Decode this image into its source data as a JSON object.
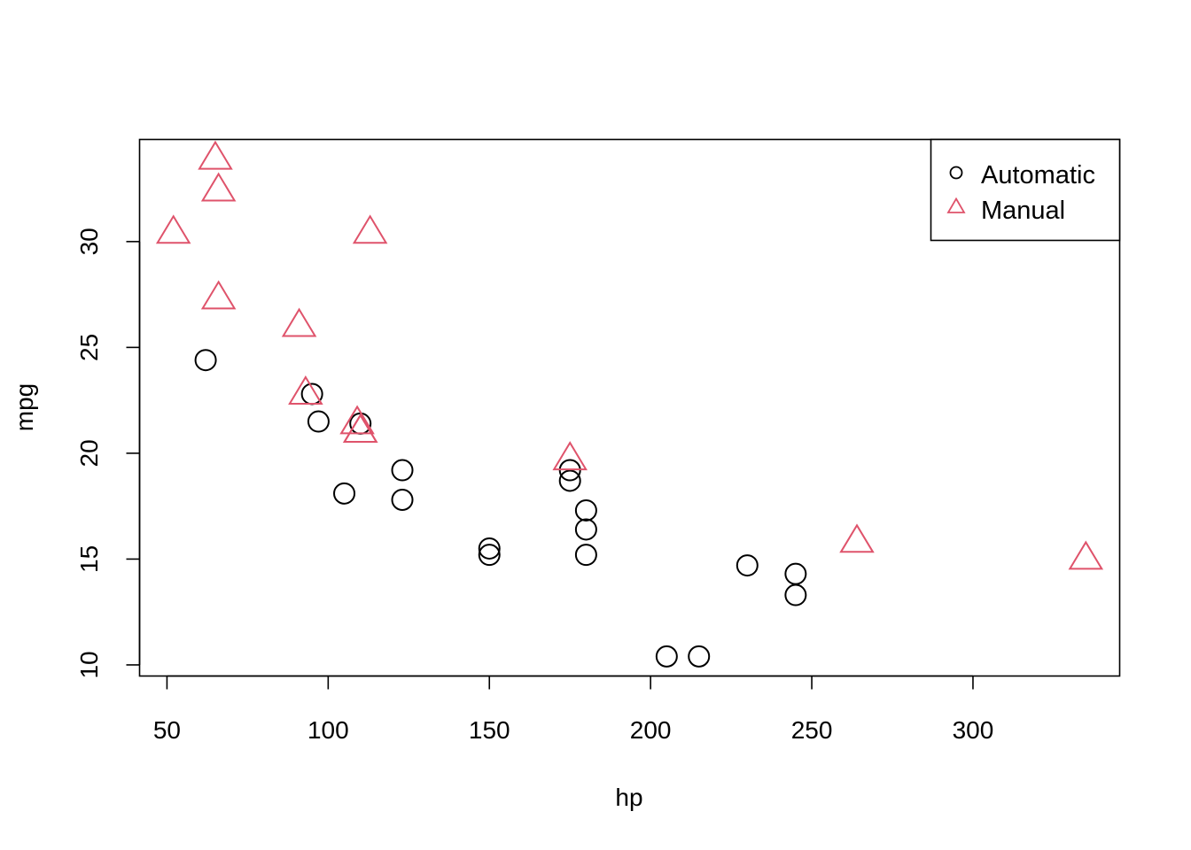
{
  "chart_data": {
    "type": "scatter",
    "title": "",
    "xlabel": "hp",
    "ylabel": "mpg",
    "xlim": [
      41.5,
      345.5
    ],
    "ylim": [
      9.475,
      34.825
    ],
    "x_ticks": [
      50,
      100,
      150,
      200,
      250,
      300
    ],
    "y_ticks": [
      10,
      15,
      20,
      25,
      30
    ],
    "legend": {
      "position": "top-right",
      "entries": [
        "Automatic",
        "Manual"
      ]
    },
    "grid": false,
    "series": [
      {
        "name": "Automatic",
        "marker": "circle",
        "color": "#000000",
        "points": [
          [
            110,
            21.4
          ],
          [
            175,
            18.7
          ],
          [
            105,
            18.1
          ],
          [
            245,
            14.3
          ],
          [
            62,
            24.4
          ],
          [
            95,
            22.8
          ],
          [
            123,
            19.2
          ],
          [
            123,
            17.8
          ],
          [
            180,
            16.4
          ],
          [
            180,
            17.3
          ],
          [
            180,
            15.2
          ],
          [
            205,
            10.4
          ],
          [
            215,
            10.4
          ],
          [
            230,
            14.7
          ],
          [
            97,
            21.5
          ],
          [
            150,
            15.5
          ],
          [
            150,
            15.2
          ],
          [
            245,
            13.3
          ],
          [
            175,
            19.2
          ]
        ]
      },
      {
        "name": "Manual",
        "marker": "triangle",
        "color": "#DF536B",
        "points": [
          [
            110,
            21.0
          ],
          [
            110,
            21.0
          ],
          [
            93,
            22.8
          ],
          [
            66,
            32.4
          ],
          [
            52,
            30.4
          ],
          [
            65,
            33.9
          ],
          [
            66,
            27.3
          ],
          [
            91,
            26.0
          ],
          [
            113,
            30.4
          ],
          [
            264,
            15.8
          ],
          [
            175,
            19.7
          ],
          [
            335,
            15.0
          ],
          [
            109,
            21.4
          ]
        ]
      }
    ]
  }
}
